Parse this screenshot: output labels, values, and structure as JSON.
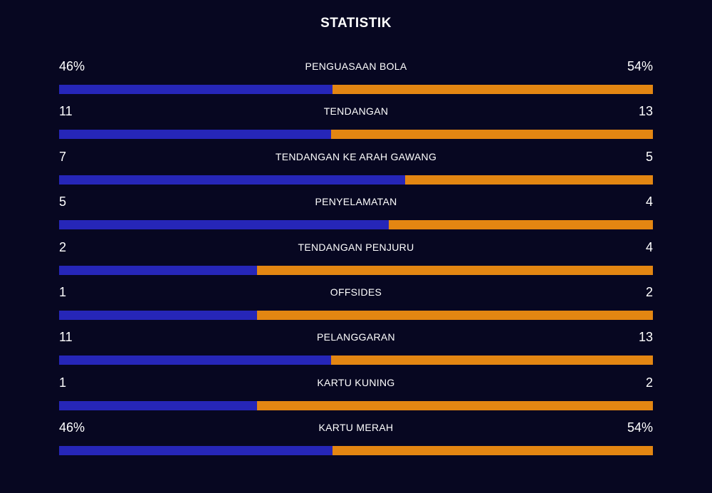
{
  "title": "STATISTIK",
  "colors": {
    "background": "#070721",
    "home": "#2626b8",
    "away": "#e38612"
  },
  "stats": [
    {
      "label": "PENGUASAAN BOLA",
      "home": "46%",
      "away": "54%",
      "home_share": 0.46
    },
    {
      "label": "TENDANGAN",
      "home": "11",
      "away": "13",
      "home_share": 0.4583
    },
    {
      "label": "TENDANGAN KE ARAH GAWANG",
      "home": "7",
      "away": "5",
      "home_share": 0.5833
    },
    {
      "label": "PENYELAMATAN",
      "home": "5",
      "away": "4",
      "home_share": 0.5556
    },
    {
      "label": "TENDANGAN PENJURU",
      "home": "2",
      "away": "4",
      "home_share": 0.3333
    },
    {
      "label": "OFFSIDES",
      "home": "1",
      "away": "2",
      "home_share": 0.3333
    },
    {
      "label": "PELANGGARAN",
      "home": "11",
      "away": "13",
      "home_share": 0.4583
    },
    {
      "label": "KARTU KUNING",
      "home": "1",
      "away": "2",
      "home_share": 0.3333
    },
    {
      "label": "KARTU MERAH",
      "home": "46%",
      "away": "54%",
      "home_share": 0.46
    }
  ]
}
